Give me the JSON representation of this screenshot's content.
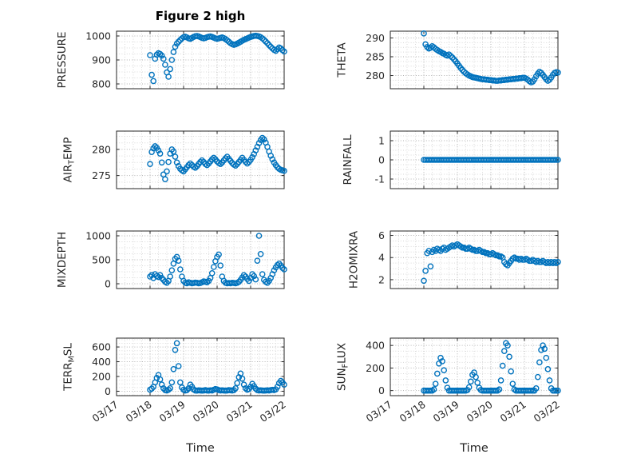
{
  "figure": {
    "title": "Figure 2 high",
    "xlabel": "Time"
  },
  "colors": {
    "marker": "#0072BD",
    "grid_major": "#b3b3b3",
    "grid_minor": "#d9d9d9",
    "axis": "#262626",
    "text": "#262626"
  },
  "x_axis": {
    "lim": [
      0,
      5
    ],
    "ticks": [
      0,
      1,
      2,
      3,
      4,
      5
    ],
    "tick_labels": [
      "03/17",
      "03/18",
      "03/19",
      "03/20",
      "03/21",
      "03/22"
    ]
  },
  "marker_style": {
    "shape": "circle-open",
    "color": "#0072BD"
  },
  "chart_data": [
    {
      "name": "PRESSURE",
      "type": "scatter",
      "row": 0,
      "col": 0,
      "ylabel": "PRESSURE",
      "yticks": [
        800,
        900,
        1000
      ],
      "ylim": [
        780,
        1020
      ],
      "series": {
        "t0": 1.0,
        "dt": 0.05,
        "values": [
          920,
          838,
          812,
          905,
          922,
          928,
          925,
          918,
          905,
          880,
          848,
          830,
          862,
          900,
          933,
          955,
          968,
          976,
          983,
          990,
          995,
          997,
          994,
          990,
          988,
          992,
          996,
          999,
          1000,
          998,
          995,
          992,
          990,
          992,
          995,
          997,
          998,
          996,
          993,
          990,
          988,
          990,
          992,
          994,
          991,
          987,
          982,
          976,
          970,
          966,
          963,
          965,
          968,
          972,
          976,
          980,
          984,
          987,
          990,
          993,
          996,
          998,
          1000,
          1001,
          1000,
          998,
          995,
          990,
          984,
          977,
          970,
          962,
          955,
          948,
          942,
          938,
          945,
          952,
          948,
          941,
          935
        ]
      }
    },
    {
      "name": "THETA",
      "type": "scatter",
      "row": 0,
      "col": 1,
      "ylabel": "THETA",
      "yticks": [
        280,
        285,
        290
      ],
      "ylim": [
        276.5,
        291.8
      ],
      "series": {
        "t0": 1.0,
        "dt": 0.05,
        "values": [
          291.2,
          288.3,
          287.6,
          287.2,
          287.4,
          287.8,
          287.5,
          287.1,
          286.8,
          286.5,
          286.3,
          286.0,
          285.8,
          285.5,
          285.3,
          285.6,
          285.2,
          284.8,
          284.3,
          283.8,
          283.2,
          282.6,
          282.0,
          281.5,
          281.0,
          280.6,
          280.3,
          280.0,
          279.8,
          279.6,
          279.5,
          279.4,
          279.3,
          279.2,
          279.1,
          279.0,
          279.0,
          278.9,
          278.9,
          278.8,
          278.8,
          278.7,
          278.7,
          278.6,
          278.6,
          278.7,
          278.7,
          278.8,
          278.8,
          278.9,
          278.9,
          279.0,
          279.0,
          279.1,
          279.1,
          279.2,
          279.2,
          279.3,
          279.3,
          279.4,
          279.4,
          279.2,
          278.9,
          278.5,
          278.2,
          278.4,
          279.0,
          279.8,
          280.5,
          281.0,
          280.7,
          280.2,
          279.6,
          279.0,
          278.6,
          278.9,
          279.5,
          280.2,
          280.7,
          280.9,
          280.8
        ]
      }
    },
    {
      "name": "AIR_TEMP",
      "type": "scatter",
      "row": 1,
      "col": 0,
      "ylabel": "AIR_TEMP",
      "yticks": [
        275,
        280
      ],
      "ylim": [
        272.5,
        283.5
      ],
      "series": {
        "t0": 1.0,
        "dt": 0.05,
        "values": [
          277.2,
          279.5,
          280.2,
          280.6,
          280.3,
          279.8,
          279.2,
          277.5,
          275.2,
          274.3,
          275.8,
          277.6,
          279.2,
          280.0,
          279.6,
          278.6,
          277.5,
          276.8,
          276.3,
          276.0,
          275.8,
          276.2,
          276.6,
          277.0,
          277.3,
          277.0,
          276.7,
          276.5,
          276.8,
          277.2,
          277.6,
          277.9,
          277.6,
          277.2,
          277.0,
          277.3,
          277.7,
          278.1,
          278.4,
          278.1,
          277.7,
          277.4,
          277.2,
          277.5,
          277.9,
          278.3,
          278.6,
          278.2,
          277.8,
          277.4,
          277.1,
          276.9,
          277.2,
          277.6,
          278.0,
          278.4,
          278.0,
          277.6,
          277.3,
          277.6,
          278.0,
          278.5,
          279.1,
          279.8,
          280.5,
          281.2,
          281.8,
          282.2,
          281.9,
          281.3,
          280.5,
          279.6,
          278.8,
          278.1,
          277.5,
          277.0,
          276.6,
          276.3,
          276.1,
          276.0,
          275.9
        ]
      }
    },
    {
      "name": "RAINFALL",
      "type": "scatter",
      "row": 1,
      "col": 1,
      "ylabel": "RAINFALL",
      "yticks": [
        -1,
        0,
        1
      ],
      "ylim": [
        -1.5,
        1.5
      ],
      "series": {
        "t0": 1.0,
        "dt": 0.05,
        "values": [
          0,
          0,
          0,
          0,
          0,
          0,
          0,
          0,
          0,
          0,
          0,
          0,
          0,
          0,
          0,
          0,
          0,
          0,
          0,
          0,
          0,
          0,
          0,
          0,
          0,
          0,
          0,
          0,
          0,
          0,
          0,
          0,
          0,
          0,
          0,
          0,
          0,
          0,
          0,
          0,
          0,
          0,
          0,
          0,
          0,
          0,
          0,
          0,
          0,
          0,
          0,
          0,
          0,
          0,
          0,
          0,
          0,
          0,
          0,
          0,
          0,
          0,
          0,
          0,
          0,
          0,
          0,
          0,
          0,
          0,
          0,
          0,
          0,
          0,
          0,
          0,
          0,
          0,
          0,
          0,
          0
        ]
      }
    },
    {
      "name": "MIXDEPTH",
      "type": "scatter",
      "row": 2,
      "col": 0,
      "ylabel": "MIXDEPTH",
      "yticks": [
        0,
        500,
        1000
      ],
      "ylim": [
        -100,
        1100
      ],
      "series": {
        "t0": 1.0,
        "dt": 0.05,
        "values": [
          150,
          180,
          120,
          200,
          160,
          140,
          180,
          120,
          80,
          40,
          20,
          60,
          150,
          280,
          420,
          520,
          560,
          480,
          300,
          150,
          60,
          20,
          10,
          30,
          20,
          10,
          15,
          25,
          20,
          10,
          15,
          30,
          50,
          40,
          30,
          60,
          120,
          220,
          350,
          470,
          560,
          610,
          380,
          150,
          60,
          20,
          10,
          15,
          10,
          20,
          15,
          10,
          20,
          40,
          80,
          130,
          180,
          150,
          100,
          60,
          120,
          200,
          160,
          90,
          480,
          1000,
          620,
          200,
          80,
          40,
          20,
          60,
          120,
          200,
          280,
          340,
          390,
          420,
          380,
          330,
          300
        ]
      }
    },
    {
      "name": "H2OMIXRA",
      "type": "scatter",
      "row": 2,
      "col": 1,
      "ylabel": "H2OMIXRA",
      "yticks": [
        2,
        4,
        6
      ],
      "ylim": [
        1.2,
        6.4
      ],
      "series": {
        "t0": 1.0,
        "dt": 0.05,
        "values": [
          1.9,
          2.8,
          4.4,
          4.6,
          3.2,
          4.5,
          4.7,
          4.6,
          4.8,
          4.7,
          4.6,
          4.8,
          4.9,
          4.7,
          4.8,
          4.9,
          5.0,
          5.1,
          5.0,
          5.1,
          5.2,
          5.1,
          5.0,
          4.9,
          4.9,
          4.8,
          4.8,
          4.9,
          4.8,
          4.7,
          4.7,
          4.6,
          4.6,
          4.7,
          4.6,
          4.5,
          4.5,
          4.4,
          4.4,
          4.3,
          4.3,
          4.4,
          4.3,
          4.2,
          4.2,
          4.1,
          4.1,
          4.0,
          3.6,
          3.4,
          3.3,
          3.5,
          3.7,
          3.9,
          4.0,
          3.9,
          3.9,
          3.8,
          3.9,
          3.8,
          3.8,
          3.9,
          3.8,
          3.7,
          3.7,
          3.8,
          3.7,
          3.6,
          3.7,
          3.6,
          3.6,
          3.7,
          3.6,
          3.5,
          3.6,
          3.5,
          3.6,
          3.5,
          3.6,
          3.5,
          3.6
        ]
      }
    },
    {
      "name": "TERR_MSL",
      "type": "scatter",
      "row": 3,
      "col": 0,
      "ylabel": "TERR_MSL",
      "yticks": [
        0,
        200,
        400,
        600
      ],
      "ylim": [
        -60,
        720
      ],
      "series": {
        "t0": 1.0,
        "dt": 0.05,
        "values": [
          20,
          35,
          60,
          120,
          180,
          220,
          160,
          90,
          40,
          15,
          10,
          20,
          40,
          120,
          300,
          560,
          650,
          340,
          120,
          50,
          20,
          10,
          15,
          40,
          90,
          60,
          25,
          10,
          8,
          12,
          10,
          8,
          10,
          15,
          10,
          8,
          12,
          10,
          20,
          30,
          25,
          15,
          10,
          12,
          10,
          8,
          10,
          15,
          12,
          10,
          15,
          40,
          110,
          190,
          240,
          170,
          90,
          40,
          20,
          30,
          60,
          100,
          70,
          35,
          15,
          10,
          12,
          10,
          8,
          10,
          12,
          10,
          15,
          20,
          15,
          25,
          60,
          110,
          140,
          120,
          90
        ]
      }
    },
    {
      "name": "SUN_FLUX",
      "type": "scatter",
      "row": 3,
      "col": 1,
      "ylabel": "SUN_FLUX",
      "yticks": [
        0,
        200,
        400
      ],
      "ylim": [
        -45,
        465
      ],
      "series": {
        "t0": 1.0,
        "dt": 0.05,
        "values": [
          0,
          0,
          0,
          0,
          0,
          0,
          10,
          60,
          150,
          240,
          290,
          260,
          180,
          90,
          25,
          0,
          0,
          0,
          0,
          0,
          0,
          0,
          0,
          0,
          0,
          0,
          5,
          30,
          80,
          140,
          160,
          120,
          70,
          25,
          5,
          0,
          0,
          0,
          0,
          0,
          0,
          0,
          0,
          0,
          0,
          10,
          90,
          220,
          350,
          420,
          400,
          300,
          170,
          60,
          10,
          0,
          0,
          0,
          0,
          0,
          0,
          0,
          0,
          0,
          0,
          0,
          0,
          20,
          120,
          250,
          360,
          400,
          370,
          290,
          190,
          90,
          20,
          0,
          0,
          0,
          0
        ]
      }
    }
  ]
}
